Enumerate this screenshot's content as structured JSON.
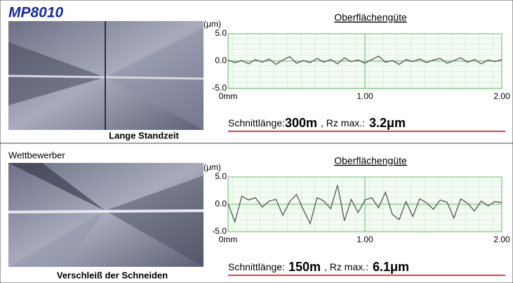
{
  "panels": [
    {
      "title": "MP8010",
      "caption": "Lange Standzeit",
      "result": {
        "label": "Schnittlänge:",
        "length": "300m",
        "sep": ", Rz max.:",
        "rz": "3.2μm"
      }
    },
    {
      "title": "Wettbewerber",
      "caption": "Verschleiß der Schneiden",
      "result": {
        "label": "Schnittlänge:",
        "length": "150m",
        "sep": ", Rz max.:",
        "rz": "6.1μm"
      }
    }
  ],
  "chart_data": [
    {
      "type": "line",
      "title": "Oberflächengüte",
      "y_label": "(μm)",
      "x": [
        0,
        0.05,
        0.1,
        0.15,
        0.2,
        0.25,
        0.3,
        0.35,
        0.4,
        0.45,
        0.5,
        0.55,
        0.6,
        0.65,
        0.7,
        0.75,
        0.8,
        0.85,
        0.9,
        0.95,
        1,
        1.05,
        1.1,
        1.15,
        1.2,
        1.25,
        1.3,
        1.35,
        1.4,
        1.45,
        1.5,
        1.55,
        1.6,
        1.65,
        1.7,
        1.75,
        1.8,
        1.85,
        1.9,
        1.95,
        2
      ],
      "series": [
        {
          "color": "#555555",
          "values": [
            0.2,
            -0.3,
            0.1,
            -0.5,
            0.3,
            -0.2,
            0.4,
            -0.6,
            0.2,
            0.8,
            -0.4,
            0.1,
            -0.3,
            0.5,
            -0.2,
            0.3,
            -0.5,
            0.6,
            -0.1,
            0.2,
            -0.4,
            0.3,
            0.9,
            -0.2,
            0.1,
            -0.6,
            0.3,
            -0.1,
            0.4,
            -0.3,
            0.2,
            0.5,
            -0.4,
            0.1,
            0.6,
            -0.2,
            0.3,
            -0.5,
            0.2,
            -0.1,
            0.3
          ]
        }
      ],
      "xlim": [
        0,
        2
      ],
      "ylim": [
        -5,
        5
      ],
      "xticks": [
        {
          "value": 0,
          "label": "0mm"
        },
        {
          "value": 1,
          "label": "1.00"
        },
        {
          "value": 2,
          "label": "2.00"
        }
      ],
      "yticks": [
        {
          "value": 5,
          "label": "5.0"
        },
        {
          "value": 0,
          "label": "0.0"
        },
        {
          "value": -5,
          "label": "-5.0"
        }
      ],
      "grid": true
    },
    {
      "type": "line",
      "title": "Oberflächengüte",
      "y_label": "(μm)",
      "x": [
        0,
        0.05,
        0.1,
        0.15,
        0.2,
        0.25,
        0.3,
        0.35,
        0.4,
        0.45,
        0.5,
        0.55,
        0.6,
        0.65,
        0.7,
        0.75,
        0.8,
        0.85,
        0.9,
        0.95,
        1,
        1.05,
        1.1,
        1.15,
        1.2,
        1.25,
        1.3,
        1.35,
        1.4,
        1.45,
        1.5,
        1.55,
        1.6,
        1.65,
        1.7,
        1.75,
        1.8,
        1.85,
        1.9,
        1.95,
        2
      ],
      "series": [
        {
          "color": "#555555",
          "values": [
            0.1,
            -3.2,
            1.5,
            0.8,
            1.2,
            -0.5,
            0.6,
            0.9,
            -2.0,
            0.5,
            1.8,
            -1.0,
            -3.5,
            1.2,
            0.6,
            -0.8,
            3.5,
            -3.0,
            0.9,
            -1.5,
            0.8,
            1.2,
            -0.6,
            2.2,
            -1.8,
            -2.8,
            0.5,
            -2.2,
            1.0,
            0.3,
            -0.9,
            0.8,
            0.4,
            -2.5,
            1.0,
            0.2,
            -1.2,
            0.6,
            -0.3,
            0.5,
            0.3
          ]
        }
      ],
      "xlim": [
        0,
        2
      ],
      "ylim": [
        -5,
        5
      ],
      "xticks": [
        {
          "value": 0,
          "label": "0mm"
        },
        {
          "value": 1,
          "label": "1.00"
        },
        {
          "value": 2,
          "label": "2.00"
        }
      ],
      "yticks": [
        {
          "value": 5,
          "label": "5.0"
        },
        {
          "value": 0,
          "label": "0.0"
        },
        {
          "value": -5,
          "label": "-5.0"
        }
      ],
      "grid": true
    }
  ]
}
